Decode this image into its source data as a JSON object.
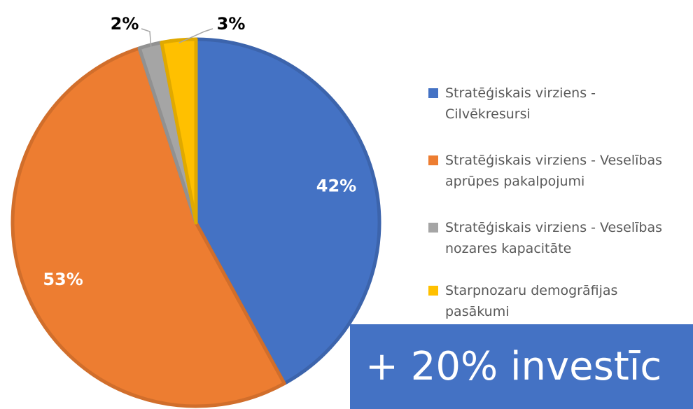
{
  "chart_data": {
    "type": "pie",
    "categories": [
      "Stratēģiskais virziens - Cilvēkresursi",
      "Stratēģiskais virziens - Veselības aprūpes pakalpojumi",
      "Stratēģiskais virziens - Veselības nozares kapacitāte",
      "Starpnozaru demogrāfijas pasākumi"
    ],
    "values": [
      42,
      53,
      2,
      3
    ],
    "value_labels": [
      "42%",
      "53%",
      "2%",
      "3%"
    ],
    "colors": [
      "#4472c4",
      "#ed7d31",
      "#a5a5a5",
      "#ffc000"
    ]
  },
  "banner": {
    "text": "+ 20% investīc"
  }
}
